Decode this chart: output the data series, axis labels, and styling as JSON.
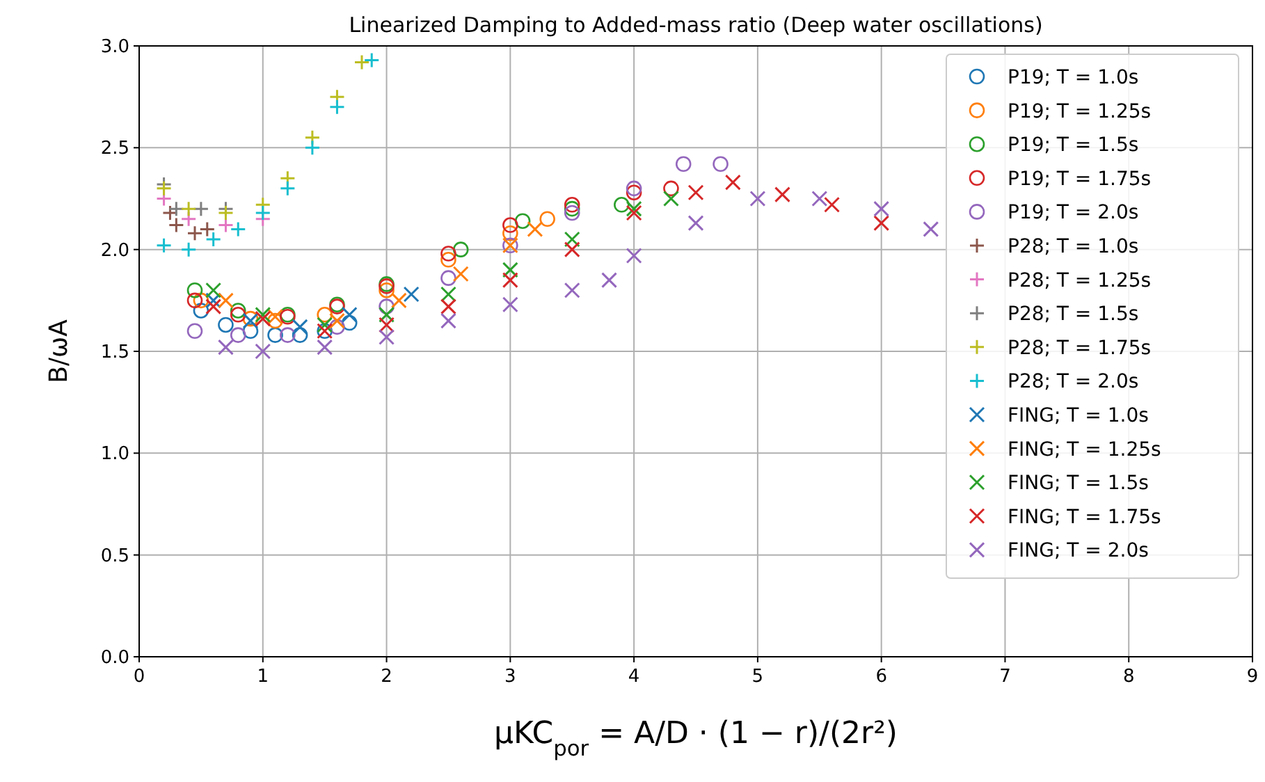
{
  "chart_data": {
    "type": "scatter",
    "title": "Linearized Damping to Added-mass ratio (Deep water oscillations)",
    "xlabel": "μKC$_{por}$ = A/D · (1 − r)/(2r²)",
    "ylabel": "B/ωA",
    "xlim": [
      0,
      9
    ],
    "ylim": [
      0,
      3.0
    ],
    "xticks": [
      0,
      1,
      2,
      3,
      4,
      5,
      6,
      7,
      8,
      9
    ],
    "yticks": [
      {
        "value": 0,
        "label": "0.0"
      },
      0.5,
      {
        "value": 1,
        "label": "1.0"
      },
      1.5,
      {
        "value": 2,
        "label": "2.0"
      },
      2.5,
      {
        "value": 3,
        "label": "3.0"
      }
    ],
    "grid": true,
    "legend": "top right",
    "series": [
      {
        "name": "P19; T = 1.0s",
        "color": "#1f77b4",
        "marker": "circle",
        "x": [
          0.5,
          0.7,
          0.9,
          1.1,
          1.3,
          1.5,
          1.7
        ],
        "values": [
          1.7,
          1.63,
          1.6,
          1.58,
          1.58,
          1.6,
          1.64
        ]
      },
      {
        "name": "P19; T = 1.25s",
        "color": "#ff7f0e",
        "marker": "circle",
        "x": [
          0.5,
          0.9,
          1.1,
          1.5,
          2.0,
          2.5,
          3.0,
          3.3
        ],
        "values": [
          1.75,
          1.66,
          1.65,
          1.68,
          1.8,
          1.95,
          2.08,
          2.15
        ]
      },
      {
        "name": "P19; T = 1.5s",
        "color": "#2ca02c",
        "marker": "circle",
        "x": [
          0.45,
          0.8,
          1.2,
          1.6,
          2.0,
          2.6,
          3.1,
          3.5,
          3.9
        ],
        "values": [
          1.8,
          1.7,
          1.68,
          1.73,
          1.83,
          2.0,
          2.14,
          2.2,
          2.22
        ]
      },
      {
        "name": "P19; T = 1.75s",
        "color": "#d62728",
        "marker": "circle",
        "x": [
          0.45,
          0.8,
          1.2,
          1.6,
          2.0,
          2.5,
          3.0,
          3.5,
          4.0,
          4.3
        ],
        "values": [
          1.75,
          1.68,
          1.67,
          1.72,
          1.82,
          1.98,
          2.12,
          2.22,
          2.28,
          2.3
        ]
      },
      {
        "name": "P19; T = 2.0s",
        "color": "#9467bd",
        "marker": "circle",
        "x": [
          0.45,
          0.8,
          1.2,
          1.6,
          2.0,
          2.5,
          3.0,
          3.5,
          4.0,
          4.4,
          4.7
        ],
        "values": [
          1.6,
          1.58,
          1.58,
          1.62,
          1.72,
          1.86,
          2.02,
          2.18,
          2.3,
          2.42,
          2.42
        ]
      },
      {
        "name": "P28; T = 1.0s",
        "color": "#8c564b",
        "marker": "plus",
        "x": [
          0.25,
          0.3,
          0.45,
          0.55
        ],
        "values": [
          2.18,
          2.12,
          2.08,
          2.1
        ]
      },
      {
        "name": "P28; T = 1.25s",
        "color": "#e377c2",
        "marker": "plus",
        "x": [
          0.2,
          0.4,
          0.7,
          1.0
        ],
        "values": [
          2.25,
          2.15,
          2.12,
          2.15
        ]
      },
      {
        "name": "P28; T = 1.5s",
        "color": "#7f7f7f",
        "marker": "plus",
        "x": [
          0.2,
          0.3,
          0.5,
          0.7
        ],
        "values": [
          2.32,
          2.2,
          2.2,
          2.2
        ]
      },
      {
        "name": "P28; T = 1.75s",
        "color": "#bcbd22",
        "marker": "plus",
        "x": [
          0.2,
          0.4,
          0.7,
          1.0,
          1.2,
          1.4,
          1.6,
          1.8
        ],
        "values": [
          2.3,
          2.2,
          2.18,
          2.22,
          2.35,
          2.55,
          2.75,
          2.92
        ]
      },
      {
        "name": "P28; T = 2.0s",
        "color": "#17becf",
        "marker": "plus",
        "x": [
          0.2,
          0.4,
          0.6,
          0.8,
          1.0,
          1.2,
          1.4,
          1.6,
          1.88
        ],
        "values": [
          2.02,
          2.0,
          2.05,
          2.1,
          2.18,
          2.3,
          2.5,
          2.7,
          2.93
        ]
      },
      {
        "name": "FING; T = 1.0s",
        "color": "#1f77b4",
        "marker": "cross",
        "x": [
          0.6,
          0.9,
          1.3,
          1.7,
          2.2
        ],
        "values": [
          1.75,
          1.65,
          1.62,
          1.68,
          1.78
        ]
      },
      {
        "name": "FING; T = 1.25s",
        "color": "#ff7f0e",
        "marker": "cross",
        "x": [
          0.7,
          1.1,
          1.6,
          2.1,
          2.6,
          3.0,
          3.2
        ],
        "values": [
          1.75,
          1.67,
          1.65,
          1.75,
          1.88,
          2.02,
          2.1
        ]
      },
      {
        "name": "FING; T = 1.5s",
        "color": "#2ca02c",
        "marker": "cross",
        "x": [
          0.6,
          1.0,
          1.5,
          2.0,
          2.5,
          3.0,
          3.5,
          4.0,
          4.3
        ],
        "values": [
          1.8,
          1.68,
          1.63,
          1.68,
          1.78,
          1.9,
          2.05,
          2.2,
          2.25
        ]
      },
      {
        "name": "FING; T = 1.75s",
        "color": "#d62728",
        "marker": "cross",
        "x": [
          0.6,
          1.0,
          1.5,
          2.0,
          2.5,
          3.0,
          3.5,
          4.0,
          4.5,
          4.8,
          5.2,
          5.6,
          6.0
        ],
        "values": [
          1.72,
          1.66,
          1.6,
          1.63,
          1.72,
          1.85,
          2.0,
          2.18,
          2.28,
          2.33,
          2.27,
          2.22,
          2.13
        ]
      },
      {
        "name": "FING; T = 2.0s",
        "color": "#9467bd",
        "marker": "cross",
        "x": [
          0.7,
          1.0,
          1.5,
          2.0,
          2.5,
          3.0,
          3.5,
          3.8,
          4.0,
          4.5,
          5.0,
          5.5,
          6.0,
          6.4
        ],
        "values": [
          1.52,
          1.5,
          1.52,
          1.57,
          1.65,
          1.73,
          1.8,
          1.85,
          1.97,
          2.13,
          2.25,
          2.25,
          2.2,
          2.1
        ]
      }
    ]
  }
}
